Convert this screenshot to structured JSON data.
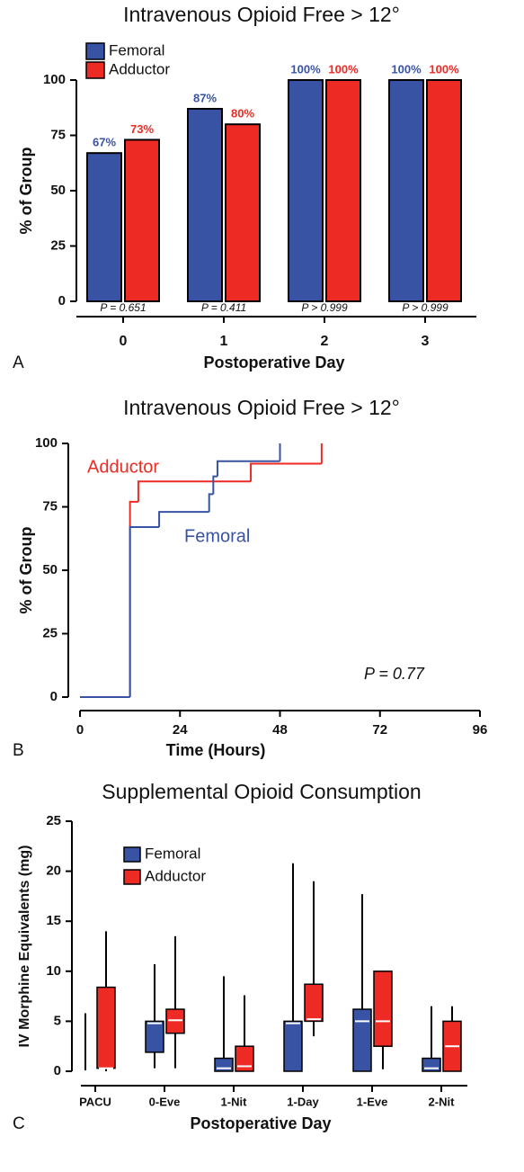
{
  "chart_data": [
    {
      "type": "bar",
      "title": "Intravenous Opioid Free > 12°",
      "panel_label": "A",
      "categories": [
        "0",
        "1",
        "2",
        "3"
      ],
      "series": [
        {
          "name": "Femoral",
          "color": "#3953a4",
          "values": [
            67,
            87,
            100,
            100
          ],
          "value_labels": [
            "67%",
            "87%",
            "100%",
            "100%"
          ]
        },
        {
          "name": "Adductor",
          "color": "#ed2a24",
          "values": [
            73,
            80,
            100,
            100
          ],
          "value_labels": [
            "73%",
            "80%",
            "100%",
            "100%"
          ]
        }
      ],
      "annotations": [
        "P = 0.651",
        "P = 0.411",
        "P > 0.999",
        "P > 0.999"
      ],
      "ylim": [
        0,
        100
      ],
      "yticks": [
        0,
        25,
        50,
        75,
        100
      ],
      "ylabel": "% of Group",
      "xlabel": "Postoperative Day",
      "legend": "upper left"
    },
    {
      "type": "line",
      "step": "post",
      "title": "Intravenous Opioid Free > 12°",
      "panel_label": "B",
      "series": [
        {
          "name": "Adductor",
          "color": "#ed2a24",
          "x": [
            0,
            12,
            14,
            41,
            58
          ],
          "values": [
            0,
            77,
            85,
            92,
            100
          ]
        },
        {
          "name": "Femoral",
          "color": "#3953a4",
          "x": [
            0,
            12,
            19,
            31,
            32,
            33,
            48
          ],
          "values": [
            0,
            67,
            73,
            80,
            87,
            93,
            100
          ]
        }
      ],
      "annotations": [
        "P = 0.77"
      ],
      "xlim": [
        0,
        96
      ],
      "xticks": [
        0,
        24,
        48,
        72,
        96
      ],
      "ylim": [
        0,
        100
      ],
      "yticks": [
        0,
        25,
        50,
        75,
        100
      ],
      "ylabel": "% of Group",
      "xlabel": "Time (Hours)"
    },
    {
      "type": "box",
      "title": "Supplemental Opioid Consumption",
      "panel_label": "C",
      "categories": [
        "PACU",
        "0-Eve",
        "1-Nit",
        "1-Day",
        "1-Eve",
        "2-Nit"
      ],
      "series": [
        {
          "name": "Femoral",
          "color": "#3953a4",
          "min": [
            0,
            0.3,
            0,
            0,
            0,
            0
          ],
          "q1": [
            0,
            1.9,
            0,
            0,
            0,
            0
          ],
          "median": [
            0,
            4.8,
            0.3,
            4.8,
            5,
            0.3
          ],
          "q3": [
            0,
            5,
            1.3,
            5,
            6.2,
            1.3
          ],
          "max": [
            5.8,
            10.7,
            9.5,
            20.8,
            17.7,
            6.5
          ]
        },
        {
          "name": "Adductor",
          "color": "#ed2a24",
          "min": [
            0,
            0.3,
            0,
            3.5,
            0.2,
            0
          ],
          "q1": [
            0.3,
            3.8,
            0,
            5,
            2.5,
            0
          ],
          "median": [
            0.3,
            5.1,
            0.5,
            5.2,
            5,
            2.5
          ],
          "q3": [
            8.4,
            6.2,
            2.5,
            8.7,
            10,
            5
          ],
          "max": [
            14,
            13.5,
            7.6,
            19,
            10,
            6.5
          ]
        }
      ],
      "ylim": [
        0,
        25
      ],
      "yticks": [
        0,
        5,
        10,
        15,
        20,
        25
      ],
      "ylabel": "IV Morphine Equivalents (mg)",
      "xlabel": "Postoperative Day",
      "legend": "upper left"
    }
  ]
}
